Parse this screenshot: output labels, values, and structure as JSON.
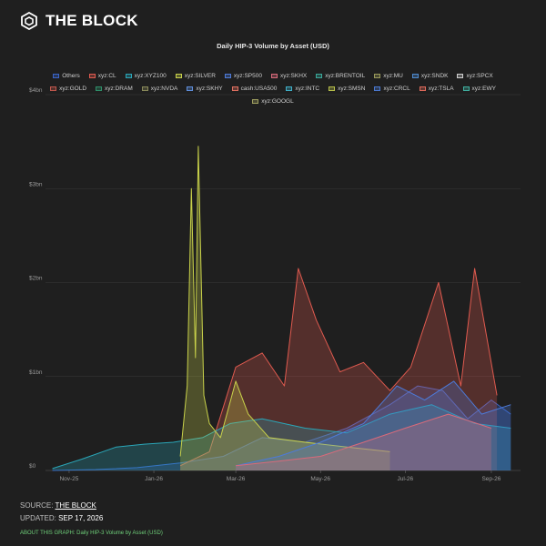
{
  "brand": {
    "name": "THE BLOCK",
    "logo_icon": "cube-hexagon-icon"
  },
  "footer": {
    "source_label": "SOURCE: ",
    "source_link": "THE BLOCK",
    "updated_label": "UPDATED: ",
    "updated_value": "SEP 17, 2026",
    "about_label": "ABOUT THIS GRAPH: ",
    "about_value": "Daily HIP-3 Volume by Asset (USD)"
  },
  "chart_data": {
    "type": "area",
    "title": "Daily HIP-3 Volume by Asset (USD)",
    "xlabel": "",
    "ylabel": "",
    "ylim": [
      0,
      4000000000
    ],
    "y_ticks": [
      {
        "value": 0,
        "label": "$0"
      },
      {
        "value": 1000000000,
        "label": "$1bn"
      },
      {
        "value": 2000000000,
        "label": "$2bn"
      },
      {
        "value": 3000000000,
        "label": "$3bn"
      },
      {
        "value": 4000000000,
        "label": "$4bn"
      }
    ],
    "x_range": [
      "2025-10-15",
      "2026-09-22"
    ],
    "x_ticks": [
      {
        "date": "2025-11-01",
        "label": "Nov-25"
      },
      {
        "date": "2026-01-01",
        "label": "Jan-26"
      },
      {
        "date": "2026-03-01",
        "label": "Mar-26"
      },
      {
        "date": "2026-05-01",
        "label": "May-26"
      },
      {
        "date": "2026-07-01",
        "label": "Jul-26"
      },
      {
        "date": "2026-09-01",
        "label": "Sep-26"
      }
    ],
    "grid": true,
    "legend_position": "top",
    "series": [
      {
        "name": "Others",
        "color": "#3a64c8",
        "x": [
          "2025-10-20",
          "2025-11-20",
          "2025-12-20",
          "2026-01-20",
          "2026-02-20",
          "2026-03-20",
          "2026-04-20",
          "2026-05-20",
          "2026-06-20",
          "2026-07-10",
          "2026-07-28",
          "2026-08-15",
          "2026-09-01",
          "2026-09-15"
        ],
        "y": [
          0,
          0.01,
          0.03,
          0.08,
          0.15,
          0.35,
          0.3,
          0.45,
          0.7,
          0.9,
          0.85,
          0.55,
          0.75,
          0.6
        ]
      },
      {
        "name": "xyz:CL",
        "color": "#e05a4f",
        "x": [
          "2026-01-20",
          "2026-02-10",
          "2026-03-01",
          "2026-03-20",
          "2026-04-05",
          "2026-04-15",
          "2026-04-28",
          "2026-05-15",
          "2026-06-01",
          "2026-06-20",
          "2026-07-05",
          "2026-07-25",
          "2026-08-10",
          "2026-08-20",
          "2026-09-05"
        ],
        "y": [
          0.05,
          0.2,
          1.1,
          1.25,
          0.9,
          2.15,
          1.6,
          1.05,
          1.15,
          0.85,
          1.1,
          2.0,
          0.9,
          2.15,
          0.8
        ]
      },
      {
        "name": "xyz:XYZ100",
        "color": "#2aa6b8",
        "x": [
          "2025-10-20",
          "2025-11-10",
          "2025-12-05",
          "2025-12-25",
          "2026-01-15",
          "2026-02-05",
          "2026-02-25",
          "2026-03-20",
          "2026-04-20",
          "2026-05-20",
          "2026-06-20",
          "2026-07-20",
          "2026-08-20",
          "2026-09-15"
        ],
        "y": [
          0.02,
          0.12,
          0.25,
          0.28,
          0.3,
          0.35,
          0.5,
          0.55,
          0.45,
          0.4,
          0.6,
          0.7,
          0.5,
          0.45
        ]
      },
      {
        "name": "xyz:SILVER",
        "color": "#c9d24a",
        "x": [
          "2026-01-20",
          "2026-01-25",
          "2026-01-28",
          "2026-01-31",
          "2026-02-02",
          "2026-02-06",
          "2026-02-10",
          "2026-02-18",
          "2026-03-01",
          "2026-03-10",
          "2026-03-25",
          "2026-04-20",
          "2026-05-20",
          "2026-06-20"
        ],
        "y": [
          0.15,
          0.9,
          3.0,
          1.2,
          3.45,
          0.8,
          0.5,
          0.35,
          0.95,
          0.6,
          0.35,
          0.3,
          0.25,
          0.2
        ]
      },
      {
        "name": "xyz:SP500",
        "color": "#4d7ad9",
        "x": [
          "2026-03-01",
          "2026-04-01",
          "2026-05-01",
          "2026-06-01",
          "2026-06-25",
          "2026-07-15",
          "2026-08-05",
          "2026-08-25",
          "2026-09-15"
        ],
        "y": [
          0.05,
          0.15,
          0.3,
          0.5,
          0.9,
          0.75,
          0.95,
          0.6,
          0.7
        ]
      },
      {
        "name": "xyz:SKHX",
        "color": "#d96a7a",
        "x": [
          "2026-03-01",
          "2026-04-01",
          "2026-05-01",
          "2026-06-01",
          "2026-07-01",
          "2026-08-01",
          "2026-09-01"
        ],
        "y": [
          0.05,
          0.1,
          0.15,
          0.3,
          0.45,
          0.6,
          0.45
        ]
      }
    ],
    "legend_entries": [
      {
        "name": "Others",
        "color": "#3a64c8"
      },
      {
        "name": "xyz:CL",
        "color": "#e05a4f"
      },
      {
        "name": "xyz:XYZ100",
        "color": "#2aa6b8"
      },
      {
        "name": "xyz:SILVER",
        "color": "#c9d24a"
      },
      {
        "name": "xyz:SP500",
        "color": "#4d7ad9"
      },
      {
        "name": "xyz:SKHX",
        "color": "#d96a7a"
      },
      {
        "name": "xyz:BRENTOIL",
        "color": "#3aa89a"
      },
      {
        "name": "xyz:MU",
        "color": "#9a9a5a"
      },
      {
        "name": "xyz:SNDK",
        "color": "#4f8bd0"
      },
      {
        "name": "xyz:SPCX",
        "color": "#cfcfcf"
      },
      {
        "name": "xyz:GOLD",
        "color": "#c0574c"
      },
      {
        "name": "xyz:DRAM",
        "color": "#2f8f6a"
      },
      {
        "name": "xyz:NVDA",
        "color": "#8a8a5a"
      },
      {
        "name": "xyz:SKHY",
        "color": "#5f8fdc"
      },
      {
        "name": "cash:USA500",
        "color": "#e07060"
      },
      {
        "name": "xyz:INTC",
        "color": "#3fb0c8"
      },
      {
        "name": "xyz:SMSN",
        "color": "#b8c04a"
      },
      {
        "name": "xyz:CRCL",
        "color": "#4a78d0"
      },
      {
        "name": "xyz:TSLA",
        "color": "#e06a5a"
      },
      {
        "name": "xyz:EWY",
        "color": "#40b0a0"
      },
      {
        "name": "xyz:GOOGL",
        "color": "#a0a060"
      }
    ]
  }
}
